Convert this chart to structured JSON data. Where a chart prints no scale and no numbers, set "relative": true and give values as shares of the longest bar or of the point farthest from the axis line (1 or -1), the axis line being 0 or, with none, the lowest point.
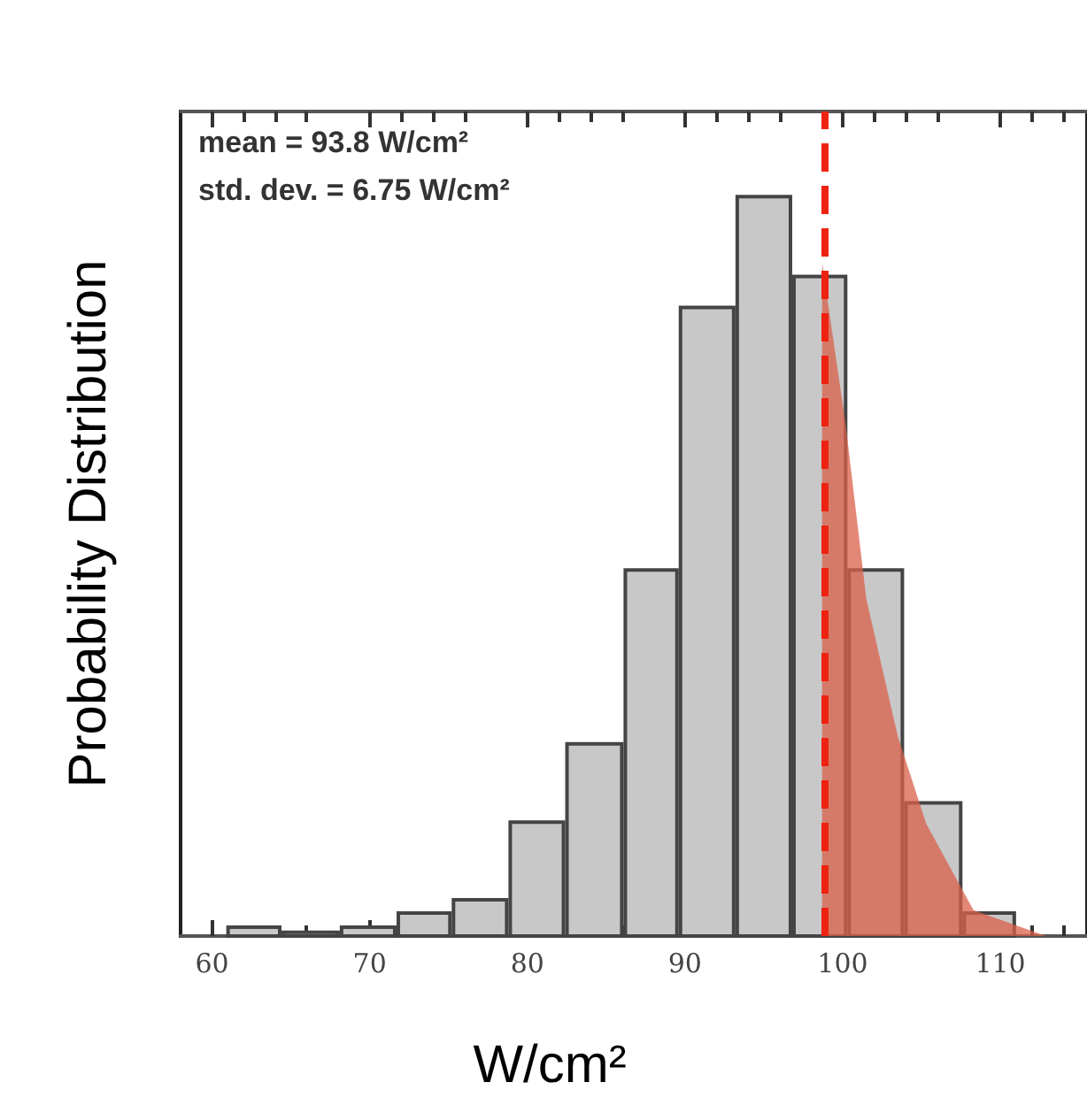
{
  "chart_data": {
    "type": "histogram",
    "xlabel": "W/cm²",
    "ylabel": "Probability Distribution",
    "relative": true,
    "annotations": [
      "mean = 93.8 W/cm²",
      "std. dev. = 6.75 W/cm²"
    ],
    "bins": [
      60.9,
      64.4,
      68.1,
      71.7,
      75.2,
      78.8,
      82.4,
      86.1,
      89.6,
      93.2,
      96.8,
      100.3,
      103.9,
      107.6,
      111.0
    ],
    "xlim": [
      58,
      115.5
    ],
    "xticks": [
      60,
      70,
      80,
      90,
      100,
      110
    ],
    "grid": false,
    "series": [
      {
        "color": "#c8c8c8",
        "values": [
          0.012,
          0.005,
          0.012,
          0.031,
          0.049,
          0.154,
          0.26,
          0.495,
          0.85,
          1.0,
          0.892,
          0.495,
          0.18,
          0.031
        ]
      },
      {
        "type": "area",
        "color": "#d9604a",
        "x": [
          98.7,
          98.7,
          100.2,
          101.5,
          103.5,
          105.3,
          108.3,
          112.9
        ],
        "values": [
          0,
          0.91,
          0.69,
          0.456,
          0.27,
          0.152,
          0.035,
          0
        ]
      }
    ],
    "ref_lines": [
      {
        "axis": "x",
        "value": 98.9,
        "color": "#ee2211",
        "line_style": "dashed"
      }
    ]
  }
}
